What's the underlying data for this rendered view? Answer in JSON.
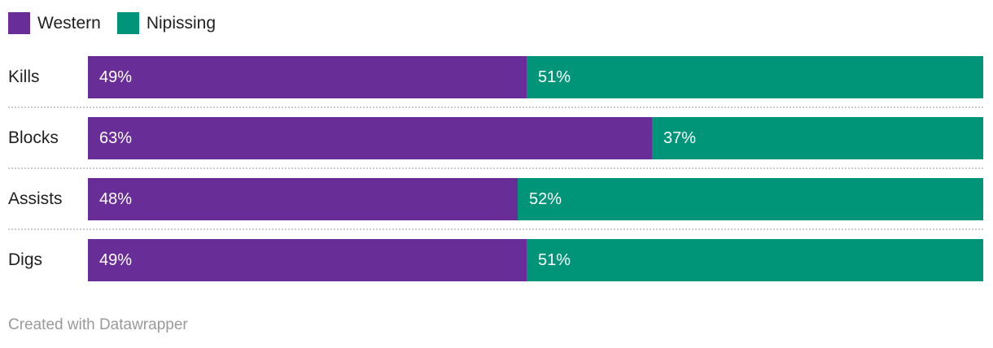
{
  "chart_data": {
    "type": "bar",
    "orientation": "horizontal",
    "stacked": true,
    "percent_stacked": true,
    "categories": [
      "Kills",
      "Blocks",
      "Assists",
      "Digs"
    ],
    "series": [
      {
        "name": "Western",
        "color": "#692d98",
        "values": [
          49,
          63,
          48,
          49
        ]
      },
      {
        "name": "Nipissing",
        "color": "#009578",
        "values": [
          51,
          37,
          52,
          51
        ]
      }
    ],
    "value_labels": [
      [
        "49%",
        "51%"
      ],
      [
        "63%",
        "37%"
      ],
      [
        "48%",
        "52%"
      ],
      [
        "49%",
        "51%"
      ]
    ],
    "xlim": [
      0,
      100
    ],
    "grid": false,
    "legend_position": "top-left",
    "title": "",
    "xlabel": "",
    "ylabel": ""
  },
  "colors": {
    "background": "#ffffff",
    "category_text": "#1f1f1f",
    "value_text": "#ffffff",
    "separator": "#cccccc",
    "credit_text": "#9a9a9a"
  },
  "footer": {
    "credit": "Created with Datawrapper"
  }
}
